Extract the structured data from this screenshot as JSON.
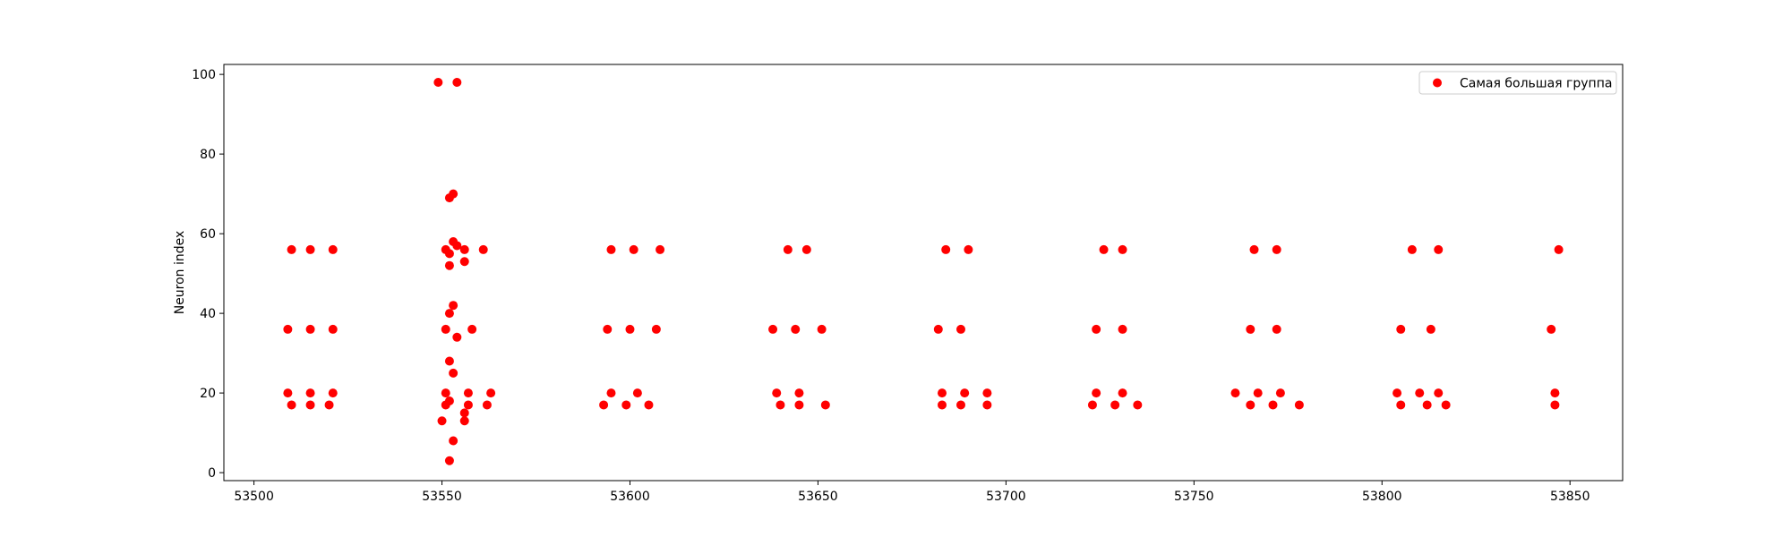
{
  "chart_data": {
    "type": "scatter",
    "title": "",
    "xlabel": "",
    "ylabel": "Neuron index",
    "xlim": [
      53492,
      53864
    ],
    "ylim": [
      -2,
      102.5
    ],
    "xticks": [
      53500,
      53550,
      53600,
      53650,
      53700,
      53750,
      53800,
      53850
    ],
    "yticks": [
      0,
      20,
      40,
      60,
      80,
      100
    ],
    "grid": false,
    "legend_position": "upper-right",
    "series": [
      {
        "name": "Самая большая группа",
        "color": "#ff0000",
        "points": [
          {
            "x": 53510,
            "y": 56
          },
          {
            "x": 53515,
            "y": 56
          },
          {
            "x": 53521,
            "y": 56
          },
          {
            "x": 53509,
            "y": 36
          },
          {
            "x": 53515,
            "y": 36
          },
          {
            "x": 53521,
            "y": 36
          },
          {
            "x": 53509,
            "y": 20
          },
          {
            "x": 53515,
            "y": 20
          },
          {
            "x": 53521,
            "y": 20
          },
          {
            "x": 53510,
            "y": 17
          },
          {
            "x": 53515,
            "y": 17
          },
          {
            "x": 53520,
            "y": 17
          },
          {
            "x": 53549,
            "y": 98
          },
          {
            "x": 53554,
            "y": 98
          },
          {
            "x": 53553,
            "y": 70
          },
          {
            "x": 53552,
            "y": 69
          },
          {
            "x": 53553,
            "y": 58
          },
          {
            "x": 53551,
            "y": 56
          },
          {
            "x": 53554,
            "y": 57
          },
          {
            "x": 53556,
            "y": 56
          },
          {
            "x": 53561,
            "y": 56
          },
          {
            "x": 53552,
            "y": 55
          },
          {
            "x": 53556,
            "y": 53
          },
          {
            "x": 53552,
            "y": 52
          },
          {
            "x": 53553,
            "y": 42
          },
          {
            "x": 53552,
            "y": 40
          },
          {
            "x": 53551,
            "y": 36
          },
          {
            "x": 53558,
            "y": 36
          },
          {
            "x": 53554,
            "y": 34
          },
          {
            "x": 53552,
            "y": 28
          },
          {
            "x": 53553,
            "y": 25
          },
          {
            "x": 53551,
            "y": 20
          },
          {
            "x": 53557,
            "y": 20
          },
          {
            "x": 53563,
            "y": 20
          },
          {
            "x": 53552,
            "y": 18
          },
          {
            "x": 53551,
            "y": 17
          },
          {
            "x": 53557,
            "y": 17
          },
          {
            "x": 53562,
            "y": 17
          },
          {
            "x": 53556,
            "y": 15
          },
          {
            "x": 53550,
            "y": 13
          },
          {
            "x": 53556,
            "y": 13
          },
          {
            "x": 53553,
            "y": 8
          },
          {
            "x": 53552,
            "y": 3
          },
          {
            "x": 53595,
            "y": 56
          },
          {
            "x": 53601,
            "y": 56
          },
          {
            "x": 53608,
            "y": 56
          },
          {
            "x": 53594,
            "y": 36
          },
          {
            "x": 53600,
            "y": 36
          },
          {
            "x": 53607,
            "y": 36
          },
          {
            "x": 53595,
            "y": 20
          },
          {
            "x": 53602,
            "y": 20
          },
          {
            "x": 53593,
            "y": 17
          },
          {
            "x": 53599,
            "y": 17
          },
          {
            "x": 53605,
            "y": 17
          },
          {
            "x": 53642,
            "y": 56
          },
          {
            "x": 53647,
            "y": 56
          },
          {
            "x": 53638,
            "y": 36
          },
          {
            "x": 53644,
            "y": 36
          },
          {
            "x": 53651,
            "y": 36
          },
          {
            "x": 53639,
            "y": 20
          },
          {
            "x": 53645,
            "y": 20
          },
          {
            "x": 53640,
            "y": 17
          },
          {
            "x": 53645,
            "y": 17
          },
          {
            "x": 53652,
            "y": 17
          },
          {
            "x": 53684,
            "y": 56
          },
          {
            "x": 53690,
            "y": 56
          },
          {
            "x": 53682,
            "y": 36
          },
          {
            "x": 53688,
            "y": 36
          },
          {
            "x": 53683,
            "y": 20
          },
          {
            "x": 53689,
            "y": 20
          },
          {
            "x": 53695,
            "y": 20
          },
          {
            "x": 53683,
            "y": 17
          },
          {
            "x": 53688,
            "y": 17
          },
          {
            "x": 53695,
            "y": 17
          },
          {
            "x": 53726,
            "y": 56
          },
          {
            "x": 53731,
            "y": 56
          },
          {
            "x": 53724,
            "y": 36
          },
          {
            "x": 53731,
            "y": 36
          },
          {
            "x": 53724,
            "y": 20
          },
          {
            "x": 53731,
            "y": 20
          },
          {
            "x": 53723,
            "y": 17
          },
          {
            "x": 53729,
            "y": 17
          },
          {
            "x": 53735,
            "y": 17
          },
          {
            "x": 53766,
            "y": 56
          },
          {
            "x": 53772,
            "y": 56
          },
          {
            "x": 53765,
            "y": 36
          },
          {
            "x": 53772,
            "y": 36
          },
          {
            "x": 53761,
            "y": 20
          },
          {
            "x": 53767,
            "y": 20
          },
          {
            "x": 53773,
            "y": 20
          },
          {
            "x": 53765,
            "y": 17
          },
          {
            "x": 53771,
            "y": 17
          },
          {
            "x": 53778,
            "y": 17
          },
          {
            "x": 53808,
            "y": 56
          },
          {
            "x": 53815,
            "y": 56
          },
          {
            "x": 53805,
            "y": 36
          },
          {
            "x": 53813,
            "y": 36
          },
          {
            "x": 53804,
            "y": 20
          },
          {
            "x": 53810,
            "y": 20
          },
          {
            "x": 53815,
            "y": 20
          },
          {
            "x": 53805,
            "y": 17
          },
          {
            "x": 53812,
            "y": 17
          },
          {
            "x": 53817,
            "y": 17
          },
          {
            "x": 53847,
            "y": 56
          },
          {
            "x": 53845,
            "y": 36
          },
          {
            "x": 53846,
            "y": 20
          },
          {
            "x": 53846,
            "y": 17
          }
        ]
      }
    ]
  }
}
